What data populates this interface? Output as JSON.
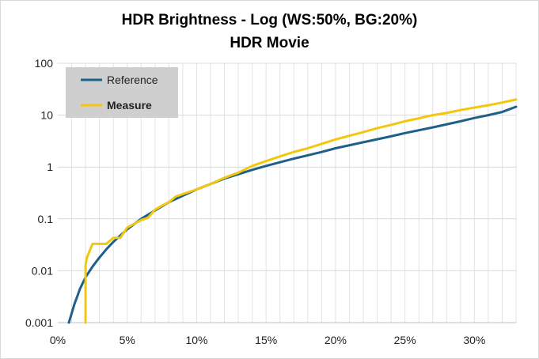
{
  "chart_data": {
    "type": "line",
    "title": "HDR Brightness - Log (WS:50%, BG:20%)",
    "subtitle": "HDR Movie",
    "xlabel": "",
    "ylabel": "",
    "y_scale": "log",
    "xlim": [
      0,
      33
    ],
    "ylim": [
      0.001,
      100
    ],
    "x_ticks": [
      0,
      5,
      10,
      15,
      20,
      25,
      30
    ],
    "x_tick_labels": [
      "0%",
      "5%",
      "10%",
      "15%",
      "20%",
      "25%",
      "30%"
    ],
    "y_ticks": [
      0.001,
      0.01,
      0.1,
      1,
      10,
      100
    ],
    "y_tick_labels": [
      "0.001",
      "0.01",
      "0.1",
      "1",
      "10",
      "100"
    ],
    "grid": {
      "x": true,
      "y": true
    },
    "legend_position": "top-left",
    "series": [
      {
        "name": "Reference",
        "color": "#1f5f8b",
        "x": [
          0.8,
          1.0,
          1.2,
          1.4,
          1.6,
          2.0,
          2.5,
          3.0,
          3.5,
          4.0,
          5.0,
          6.0,
          7.0,
          8.0,
          9.0,
          10.0,
          12.0,
          14.0,
          15.0,
          17.0,
          19.0,
          20.0,
          22.0,
          24.0,
          25.0,
          27.0,
          29.0,
          30.0,
          31.0,
          32.0,
          33.0
        ],
        "y": [
          0.001,
          0.0015,
          0.0023,
          0.0032,
          0.0045,
          0.0075,
          0.012,
          0.018,
          0.026,
          0.036,
          0.063,
          0.1,
          0.145,
          0.21,
          0.28,
          0.37,
          0.6,
          0.88,
          1.05,
          1.45,
          1.95,
          2.3,
          3.0,
          3.9,
          4.5,
          5.8,
          7.6,
          8.8,
          10.0,
          11.5,
          14.5
        ]
      },
      {
        "name": "Measure",
        "color": "#f2c80f",
        "x": [
          2.0,
          2.0,
          2.1,
          2.5,
          3.0,
          3.5,
          4.0,
          4.5,
          5.0,
          6.0,
          6.5,
          7.0,
          7.5,
          8.0,
          8.5,
          9.0,
          10.0,
          11.0,
          12.0,
          13.0,
          14.0,
          15.0,
          16.0,
          17.0,
          18.0,
          19.0,
          20.0,
          21.0,
          22.0,
          23.0,
          24.0,
          25.0,
          26.0,
          27.0,
          28.0,
          29.0,
          30.0,
          31.0,
          32.0,
          33.0
        ],
        "y": [
          0.001,
          0.013,
          0.018,
          0.033,
          0.033,
          0.033,
          0.043,
          0.043,
          0.068,
          0.095,
          0.105,
          0.15,
          0.18,
          0.21,
          0.27,
          0.3,
          0.37,
          0.47,
          0.62,
          0.78,
          1.05,
          1.3,
          1.6,
          1.95,
          2.3,
          2.8,
          3.4,
          4.0,
          4.7,
          5.6,
          6.5,
          7.6,
          8.7,
          10.0,
          11.0,
          12.5,
          14.0,
          15.5,
          17.5,
          20.0
        ]
      }
    ]
  }
}
